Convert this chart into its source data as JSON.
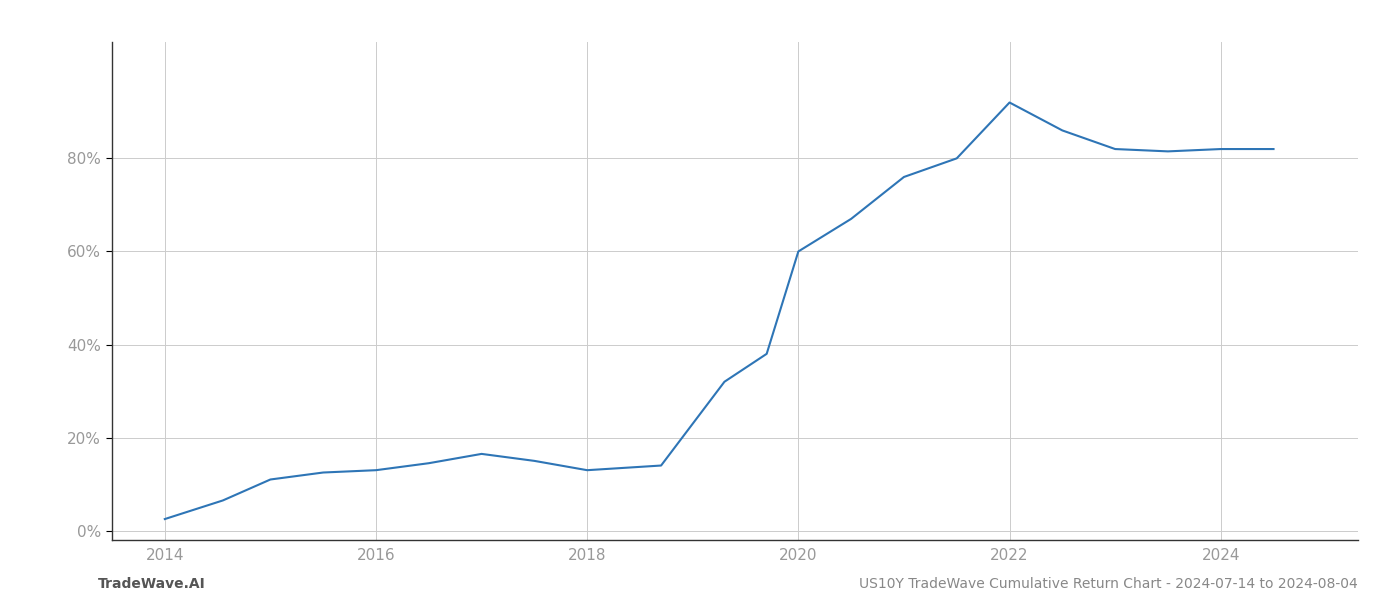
{
  "x_values": [
    2014.0,
    2014.55,
    2015.0,
    2015.5,
    2016.0,
    2016.5,
    2017.0,
    2017.5,
    2018.0,
    2018.7,
    2019.3,
    2019.7,
    2020.0,
    2020.5,
    2021.0,
    2021.5,
    2022.0,
    2022.5,
    2023.0,
    2023.5,
    2024.0,
    2024.5
  ],
  "y_values": [
    2.5,
    6.5,
    11.0,
    12.5,
    13.0,
    14.5,
    16.5,
    15.0,
    13.0,
    14.0,
    32.0,
    38.0,
    60.0,
    67.0,
    76.0,
    80.0,
    92.0,
    86.0,
    82.0,
    81.5,
    82.0,
    82.0
  ],
  "line_color": "#2e75b6",
  "line_width": 1.5,
  "background_color": "#ffffff",
  "grid_color": "#cccccc",
  "title": "US10Y TradeWave Cumulative Return Chart - 2024-07-14 to 2024-08-04",
  "footer_left": "TradeWave.AI",
  "ytick_labels": [
    "0%",
    "20%",
    "40%",
    "60%",
    "80%"
  ],
  "ytick_values": [
    0,
    20,
    40,
    60,
    80
  ],
  "xtick_labels": [
    "2014",
    "2016",
    "2018",
    "2020",
    "2022",
    "2024"
  ],
  "xtick_values": [
    2014,
    2016,
    2018,
    2020,
    2022,
    2024
  ],
  "xlim": [
    2013.5,
    2025.3
  ],
  "ylim": [
    -2,
    105
  ]
}
